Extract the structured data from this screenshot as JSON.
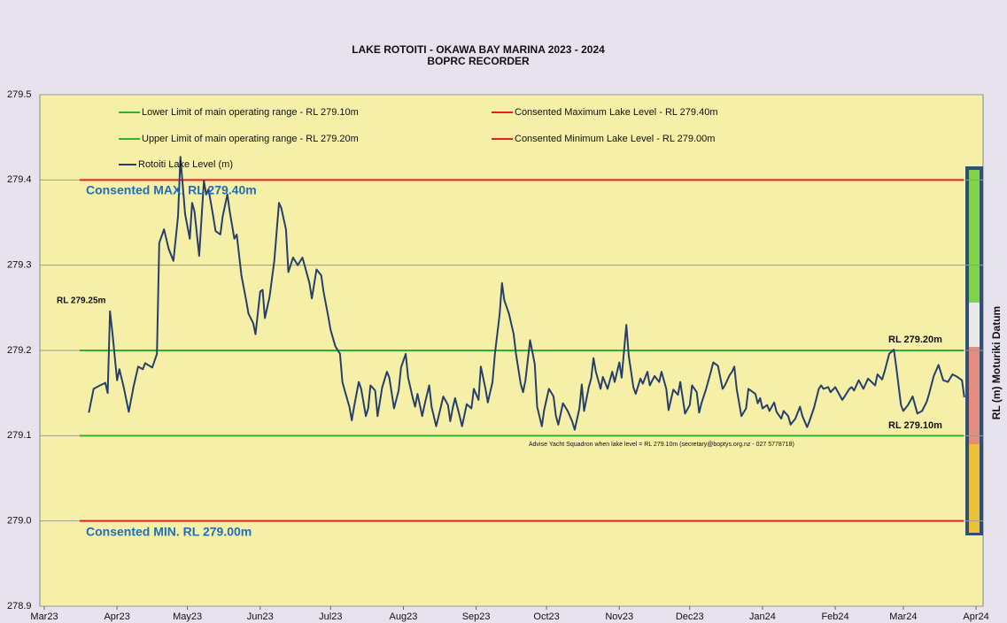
{
  "chart_data": {
    "type": "line",
    "title": "LAKE ROTOITI - OKAWA BAY MARINA 2023 - 2024",
    "subtitle": "BOPRC RECORDER",
    "ylabel": "RL (m) Moturiki Datum",
    "ylim": [
      278.9,
      279.5
    ],
    "yticks": [
      278.9,
      {
        "value": 279,
        "label": "279.0"
      },
      279.1,
      279.2,
      279.3,
      279.4,
      279.5
    ],
    "xlim": [
      "2023-03-01",
      "2024-04-04"
    ],
    "xticks": [
      {
        "value": "2023-03-01",
        "label": "Mar23"
      },
      {
        "value": "2023-04-01",
        "label": "Apr23"
      },
      {
        "value": "2023-05-01",
        "label": "May23"
      },
      {
        "value": "2023-06-01",
        "label": "Jun23"
      },
      {
        "value": "2023-07-01",
        "label": "Jul23"
      },
      {
        "value": "2023-08-01",
        "label": "Aug23"
      },
      {
        "value": "2023-09-01",
        "label": "Sep23"
      },
      {
        "value": "2023-10-01",
        "label": "Oct23"
      },
      {
        "value": "2023-11-01",
        "label": "Nov23"
      },
      {
        "value": "2023-12-01",
        "label": "Dec23"
      },
      {
        "value": "2024-01-01",
        "label": "Jan24"
      },
      {
        "value": "2024-02-01",
        "label": "Feb24"
      },
      {
        "value": "2024-03-01",
        "label": "Mar24"
      },
      {
        "value": "2024-04-01",
        "label": "Apr24"
      }
    ],
    "grid": true,
    "reference_lines": [
      {
        "name": "Lower Limit of main operating range - RL 279.10m",
        "color": "#2fb32f",
        "value": 279.1
      },
      {
        "name": "Upper Limit of main operating range - RL 279.20m",
        "color": "#2fb32f",
        "value": 279.2
      },
      {
        "name": "Consented Maximum Lake Level - RL 279.40m",
        "color": "#e6201c",
        "value": 279.4
      },
      {
        "name": "Consented Minimum Lake Level - RL 279.00m",
        "color": "#e6201c",
        "value": 279.0
      }
    ],
    "series": [
      {
        "name": "Rotoiti Lake Level (m)",
        "color": "#25406c",
        "x": [
          "2023-03-20",
          "2023-03-22",
          "2023-03-24",
          "2023-03-27",
          "2023-03-28",
          "2023-03-29",
          "2023-03-30",
          "2023-04-01",
          "2023-04-02",
          "2023-04-04",
          "2023-04-06",
          "2023-04-08",
          "2023-04-10",
          "2023-04-12",
          "2023-04-13",
          "2023-04-16",
          "2023-04-18",
          "2023-04-19",
          "2023-04-21",
          "2023-04-23",
          "2023-04-25",
          "2023-04-27",
          "2023-04-28",
          "2023-04-30",
          "2023-05-02",
          "2023-05-03",
          "2023-05-04",
          "2023-05-06",
          "2023-05-08",
          "2023-05-09",
          "2023-05-10",
          "2023-05-12",
          "2023-05-13",
          "2023-05-15",
          "2023-05-16",
          "2023-05-18",
          "2023-05-19",
          "2023-05-21",
          "2023-05-22",
          "2023-05-24",
          "2023-05-26",
          "2023-05-27",
          "2023-05-29",
          "2023-05-30",
          "2023-06-01",
          "2023-06-02",
          "2023-06-03",
          "2023-06-05",
          "2023-06-07",
          "2023-06-09",
          "2023-06-10",
          "2023-06-12",
          "2023-06-13",
          "2023-06-15",
          "2023-06-17",
          "2023-06-19",
          "2023-06-21",
          "2023-06-22",
          "2023-06-23",
          "2023-06-25",
          "2023-06-27",
          "2023-06-28",
          "2023-06-30",
          "2023-07-01",
          "2023-07-03",
          "2023-07-05",
          "2023-07-06",
          "2023-07-07",
          "2023-07-09",
          "2023-07-10",
          "2023-07-11",
          "2023-07-13",
          "2023-07-14",
          "2023-07-16",
          "2023-07-17",
          "2023-07-18",
          "2023-07-20",
          "2023-07-21",
          "2023-07-23",
          "2023-07-25",
          "2023-07-26",
          "2023-07-28",
          "2023-07-30",
          "2023-07-31",
          "2023-08-02",
          "2023-08-03",
          "2023-08-05",
          "2023-08-06",
          "2023-08-07",
          "2023-08-09",
          "2023-08-10",
          "2023-08-12",
          "2023-08-13",
          "2023-08-15",
          "2023-08-17",
          "2023-08-18",
          "2023-08-20",
          "2023-08-21",
          "2023-08-22",
          "2023-08-23",
          "2023-08-25",
          "2023-08-26",
          "2023-08-28",
          "2023-08-30",
          "2023-08-31",
          "2023-09-02",
          "2023-09-03",
          "2023-09-05",
          "2023-09-06",
          "2023-09-08",
          "2023-09-09",
          "2023-09-11",
          "2023-09-12",
          "2023-09-13",
          "2023-09-15",
          "2023-09-17",
          "2023-09-18",
          "2023-09-20",
          "2023-09-21",
          "2023-09-22",
          "2023-09-24",
          "2023-09-26",
          "2023-09-27",
          "2023-09-29",
          "2023-09-30",
          "2023-10-02",
          "2023-10-04",
          "2023-10-05",
          "2023-10-06",
          "2023-10-08",
          "2023-10-10",
          "2023-10-12",
          "2023-10-13",
          "2023-10-15",
          "2023-10-16",
          "2023-10-17",
          "2023-10-19",
          "2023-10-20",
          "2023-10-21",
          "2023-10-22",
          "2023-10-24",
          "2023-10-25",
          "2023-10-27",
          "2023-10-29",
          "2023-10-30",
          "2023-11-01",
          "2023-11-02",
          "2023-11-04",
          "2023-11-05",
          "2023-11-07",
          "2023-11-08",
          "2023-11-10",
          "2023-11-11",
          "2023-11-13",
          "2023-11-14",
          "2023-11-16",
          "2023-11-18",
          "2023-11-19",
          "2023-11-21",
          "2023-11-22",
          "2023-11-24",
          "2023-11-26",
          "2023-11-27",
          "2023-11-29",
          "2023-12-01",
          "2023-12-02",
          "2023-12-04",
          "2023-12-05",
          "2023-12-06",
          "2023-12-08",
          "2023-12-10",
          "2023-12-11",
          "2023-12-13",
          "2023-12-15",
          "2023-12-16",
          "2023-12-18",
          "2023-12-19",
          "2023-12-20",
          "2023-12-21",
          "2023-12-23",
          "2023-12-25",
          "2023-12-26",
          "2023-12-29",
          "2023-12-30",
          "2023-12-31",
          "2024-01-01",
          "2024-01-03",
          "2024-01-04",
          "2024-01-06",
          "2024-01-07",
          "2024-01-09",
          "2024-01-10",
          "2024-01-12",
          "2024-01-13",
          "2024-01-15",
          "2024-01-17",
          "2024-01-18",
          "2024-01-20",
          "2024-01-21",
          "2024-01-23",
          "2024-01-25",
          "2024-01-26",
          "2024-01-27",
          "2024-01-29",
          "2024-01-30",
          "2024-02-01",
          "2024-02-04",
          "2024-02-05",
          "2024-02-07",
          "2024-02-08",
          "2024-02-09",
          "2024-02-11",
          "2024-02-13",
          "2024-02-15",
          "2024-02-18",
          "2024-02-19",
          "2024-02-21",
          "2024-02-22",
          "2024-02-24",
          "2024-02-26",
          "2024-02-27",
          "2024-02-29",
          "2024-03-01",
          "2024-03-03",
          "2024-03-05",
          "2024-03-07",
          "2024-03-09",
          "2024-03-11",
          "2024-03-12",
          "2024-03-14",
          "2024-03-16",
          "2024-03-18",
          "2024-03-20",
          "2024-03-22",
          "2024-03-24",
          "2024-03-26",
          "2024-03-27"
        ],
        "values": [
          279.127,
          279.155,
          279.158,
          279.162,
          279.15,
          279.246,
          279.222,
          279.165,
          279.178,
          279.155,
          279.128,
          279.157,
          279.181,
          279.178,
          279.185,
          279.18,
          279.196,
          279.326,
          279.342,
          279.319,
          279.305,
          279.357,
          279.427,
          279.36,
          279.331,
          279.373,
          279.363,
          279.311,
          279.399,
          279.383,
          279.389,
          279.357,
          279.34,
          279.336,
          279.357,
          279.383,
          279.363,
          279.331,
          279.336,
          279.288,
          279.259,
          279.243,
          279.232,
          279.219,
          279.269,
          279.271,
          279.238,
          279.263,
          279.305,
          279.373,
          279.367,
          279.342,
          279.292,
          279.309,
          279.3,
          279.309,
          279.289,
          279.279,
          279.261,
          279.295,
          279.288,
          279.269,
          279.24,
          279.224,
          279.205,
          279.196,
          279.163,
          279.153,
          279.134,
          279.118,
          279.134,
          279.163,
          279.155,
          279.123,
          279.132,
          279.159,
          279.153,
          279.123,
          279.157,
          279.175,
          279.168,
          279.132,
          279.153,
          279.18,
          279.196,
          279.168,
          279.144,
          279.134,
          279.149,
          279.123,
          279.136,
          279.159,
          279.134,
          279.111,
          279.134,
          279.146,
          279.136,
          279.117,
          279.132,
          279.144,
          279.123,
          279.111,
          279.137,
          279.132,
          279.155,
          279.142,
          279.181,
          279.155,
          279.139,
          279.163,
          279.196,
          279.242,
          279.279,
          279.259,
          279.243,
          279.219,
          279.196,
          279.161,
          279.151,
          279.165,
          279.212,
          279.184,
          279.134,
          279.111,
          279.13,
          279.155,
          279.146,
          279.123,
          279.113,
          279.138,
          279.129,
          279.116,
          279.107,
          279.132,
          279.16,
          279.129,
          279.157,
          279.167,
          279.191,
          279.175,
          279.155,
          279.169,
          279.155,
          279.175,
          279.163,
          279.186,
          279.168,
          279.23,
          279.194,
          279.157,
          279.149,
          279.167,
          279.161,
          279.175,
          279.159,
          279.17,
          279.163,
          279.175,
          279.155,
          279.13,
          279.154,
          279.148,
          279.163,
          279.126,
          279.136,
          279.159,
          279.151,
          279.127,
          279.138,
          279.155,
          279.175,
          279.186,
          279.182,
          279.155,
          279.159,
          279.171,
          279.175,
          279.181,
          279.155,
          279.123,
          279.132,
          279.155,
          279.149,
          279.138,
          279.144,
          279.132,
          279.136,
          279.129,
          279.139,
          279.128,
          279.12,
          279.129,
          279.123,
          279.113,
          279.12,
          279.134,
          279.123,
          279.11,
          279.117,
          279.133,
          279.155,
          279.159,
          279.155,
          279.157,
          279.151,
          279.157,
          279.142,
          279.146,
          279.155,
          279.157,
          279.153,
          279.165,
          279.155,
          279.167,
          279.159,
          279.172,
          279.166,
          279.175,
          279.196,
          279.201,
          279.181,
          279.136,
          279.129,
          279.136,
          279.146,
          279.126,
          279.129,
          279.14,
          279.149,
          279.17,
          279.183,
          279.165,
          279.163,
          279.172,
          279.169,
          279.165,
          279.145
        ]
      }
    ],
    "annotations": [
      "Consented MAX. RL 279.40m",
      "Consented MIN. RL 279.00m",
      "RL 279.25m",
      "RL 279.20m",
      "RL 279.10m",
      "Advise Yacht Squadron when lake level = RL 279.10m (secretary@boptys.org.nz - 027 5778718)"
    ]
  }
}
